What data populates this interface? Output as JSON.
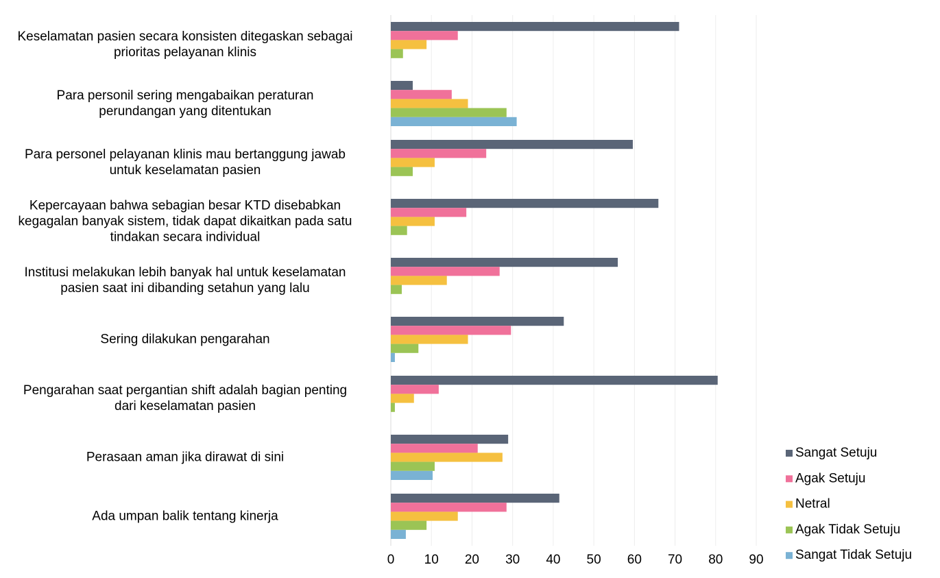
{
  "chart_data": {
    "type": "bar",
    "orientation": "horizontal",
    "categories": [
      "Keselamatan pasien secara konsisten ditegaskan sebagai\nprioritas pelayanan klinis",
      "Para personil sering mengabaikan peraturan\nperundangan yang ditentukan",
      "Para personel pelayanan klinis mau bertanggung jawab\nuntuk keselamatan pasien",
      "Kepercayaan bahwa sebagian besar KTD disebabkan\nkegagalan banyak sistem, tidak dapat dikaitkan pada satu\ntindakan secara individual",
      "Institusi melakukan lebih banyak hal untuk keselamatan\npasien saat ini dibanding setahun yang lalu",
      "Sering dilakukan pengarahan",
      "Pengarahan saat pergantian shift adalah bagian penting\ndari keselamatan pasien",
      "Perasaan aman jika dirawat di sini",
      "Ada umpan balik tentang kinerja"
    ],
    "series": [
      {
        "name": "Sangat Setuju",
        "color": "#5a6577",
        "values": [
          71,
          5.4,
          59.6,
          65.9,
          55.9,
          42.6,
          80.5,
          28.9,
          41.5
        ]
      },
      {
        "name": "Agak Setuju",
        "color": "#f0719a",
        "values": [
          16.5,
          15,
          23.5,
          18.6,
          26.8,
          29.6,
          11.8,
          21.4,
          28.5
        ]
      },
      {
        "name": "Netral",
        "color": "#f5c040",
        "values": [
          8.8,
          19,
          10.8,
          10.8,
          13.8,
          19,
          5.7,
          27.5,
          16.5
        ]
      },
      {
        "name": "Agak Tidak Setuju",
        "color": "#9bc455",
        "values": [
          3,
          28.5,
          5.4,
          4,
          2.7,
          6.8,
          1,
          10.8,
          8.8
        ]
      },
      {
        "name": "Sangat Tidak Setuju",
        "color": "#7ab2d4",
        "values": [
          0,
          31,
          0,
          0,
          0,
          1,
          0,
          10.3,
          3.7
        ]
      }
    ],
    "xlim": [
      0,
      90
    ],
    "xticks": [
      0,
      10,
      20,
      30,
      40,
      50,
      60,
      70,
      80,
      90
    ],
    "grid": true,
    "legend": "bottom-right"
  }
}
